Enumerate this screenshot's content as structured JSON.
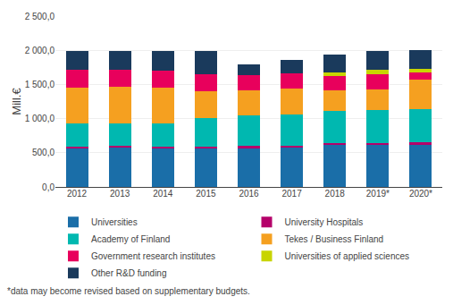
{
  "chart_data": {
    "type": "bar",
    "stacked": true,
    "categories": [
      "2012",
      "2013",
      "2014",
      "2015",
      "2016",
      "2017",
      "2018",
      "2019*",
      "2020*"
    ],
    "series": [
      {
        "name": "Universities",
        "color": "#1a6ea8",
        "values": [
          565,
          570,
          565,
          570,
          575,
          580,
          610,
          610,
          615
        ]
      },
      {
        "name": "University Hospitals",
        "color": "#b5006a",
        "values": [
          30,
          30,
          30,
          25,
          25,
          25,
          30,
          30,
          35
        ]
      },
      {
        "name": "Academy of Finland",
        "color": "#00b8b0",
        "values": [
          330,
          330,
          330,
          410,
          445,
          450,
          475,
          480,
          490
        ]
      },
      {
        "name": "Tekes / Business Finland",
        "color": "#f5a020",
        "values": [
          530,
          530,
          530,
          395,
          370,
          390,
          295,
          305,
          430
        ]
      },
      {
        "name": "Government research institutes",
        "color": "#e8005c",
        "values": [
          265,
          255,
          250,
          245,
          220,
          215,
          210,
          230,
          105
        ]
      },
      {
        "name": "Universities of applied sciences",
        "color": "#c8d400",
        "values": [
          0,
          0,
          0,
          0,
          0,
          0,
          50,
          55,
          55
        ]
      },
      {
        "name": "Other R&D funding",
        "color": "#1a3a5c",
        "values": [
          275,
          280,
          280,
          350,
          155,
          195,
          265,
          280,
          270
        ]
      }
    ],
    "ylabel": "Mill.€",
    "ylim": [
      0,
      2500
    ],
    "yticks": [
      {
        "value": 0,
        "label": "0,0"
      },
      {
        "value": 500,
        "label": "500,0"
      },
      {
        "value": 1000,
        "label": "1 000,0"
      },
      {
        "value": 1500,
        "label": "1 500,0"
      },
      {
        "value": 2000,
        "label": "2 000,0"
      },
      {
        "value": 2500,
        "label": "2 500,0"
      }
    ],
    "grid": true,
    "legend": "bottom",
    "annotations": [
      {
        "text": "*data may become revised based on supplementary budgets."
      }
    ]
  }
}
